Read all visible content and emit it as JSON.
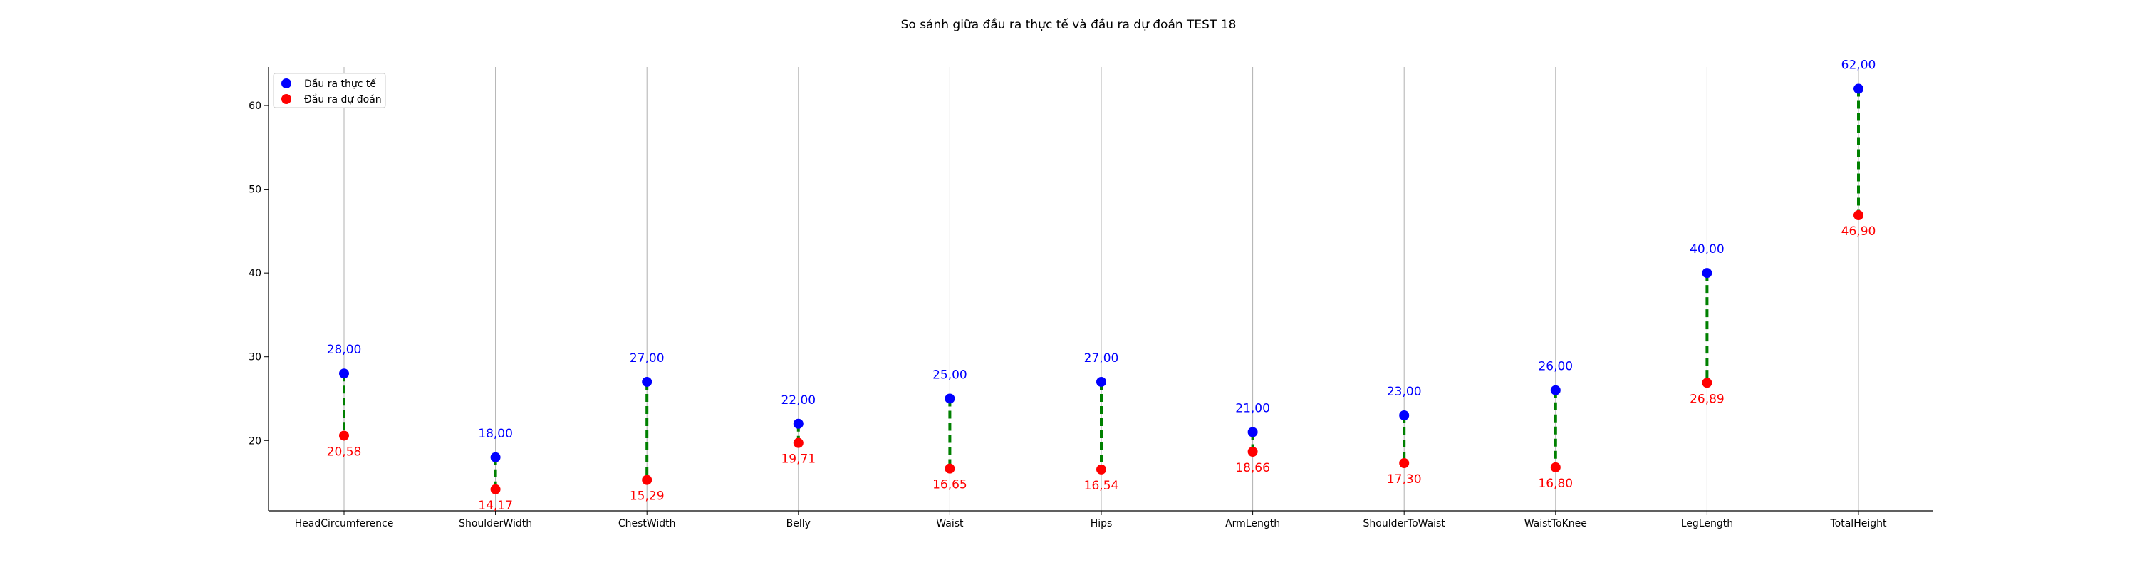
{
  "chart_data": {
    "type": "scatter",
    "title": "So sánh giữa đầu ra thực tế và đầu ra dự đoán TEST 18",
    "xlabel": "",
    "ylabel": "",
    "categories": [
      "HeadCircumference",
      "ShoulderWidth",
      "ChestWidth",
      "Belly",
      "Waist",
      "Hips",
      "ArmLength",
      "ShoulderToWaist",
      "WaistToKnee",
      "LegLength",
      "TotalHeight"
    ],
    "series": [
      {
        "name": "Đầu ra thực tế",
        "color": "#0000ff",
        "values": [
          28.0,
          18.0,
          27.0,
          22.0,
          25.0,
          27.0,
          21.0,
          23.0,
          26.0,
          40.0,
          62.0
        ],
        "labels": [
          "28,00",
          "18,00",
          "27,00",
          "22,00",
          "25,00",
          "27,00",
          "21,00",
          "23,00",
          "26,00",
          "40,00",
          "62,00"
        ]
      },
      {
        "name": "Đầu ra dự đoán",
        "color": "#ff0000",
        "values": [
          20.58,
          14.17,
          15.29,
          19.71,
          16.65,
          16.54,
          18.66,
          17.3,
          16.8,
          26.89,
          46.9
        ],
        "labels": [
          "20,58",
          "14,17",
          "15,29",
          "19,71",
          "16,65",
          "16,54",
          "18,66",
          "17,30",
          "16,80",
          "26,89",
          "46,90"
        ]
      }
    ],
    "connector_color": "#008000",
    "ylim": [
      11.6,
      64.6
    ],
    "yticks": [
      20,
      30,
      40,
      50,
      60
    ],
    "grid": "vertical",
    "legend": "top-left"
  }
}
